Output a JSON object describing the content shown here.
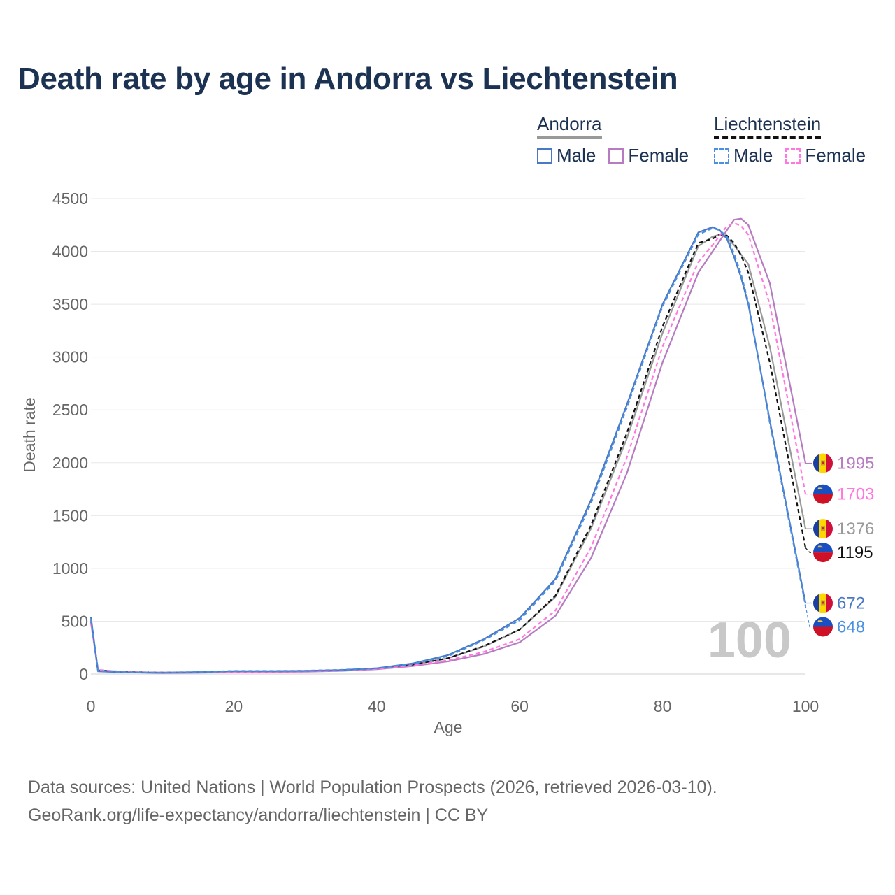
{
  "title": "Death rate by age in Andorra vs Liechtenstein",
  "legend": {
    "andorra": {
      "label": "Andorra",
      "male": "Male",
      "female": "Female"
    },
    "liechtenstein": {
      "label": "Liechtenstein",
      "male": "Male",
      "female": "Female"
    }
  },
  "colors": {
    "andorra_male": "#4a78c4",
    "andorra_female": "#b77bc2",
    "liechtenstein_male": "#4a90e2",
    "liechtenstein_female": "#ff77e0",
    "andorra_total": "#999999",
    "liechtenstein_total": "#111111"
  },
  "footer": {
    "line1": "Data sources: United Nations | World Population Prospects (2026, retrieved 2026-03-10).",
    "line2": "GeoRank.org/life-expectancy/andorra/liechtenstein | CC BY"
  },
  "chart_data": {
    "type": "line",
    "title": "Death rate by age in Andorra vs Liechtenstein",
    "xlabel": "Age",
    "ylabel": "Death rate",
    "xlim": [
      0,
      100
    ],
    "ylim": [
      0,
      4500
    ],
    "xticks": [
      0,
      20,
      40,
      60,
      80,
      100
    ],
    "yticks": [
      0,
      500,
      1000,
      1500,
      2000,
      2500,
      3000,
      3500,
      4000,
      4500
    ],
    "year_label": "100",
    "x": [
      0,
      1,
      5,
      10,
      15,
      20,
      25,
      30,
      35,
      40,
      45,
      50,
      55,
      60,
      65,
      70,
      75,
      80,
      85,
      87,
      88,
      89,
      90,
      91,
      92,
      95,
      100
    ],
    "series": [
      {
        "name": "Andorra Male",
        "key": "andorra_male",
        "dash": "solid",
        "values": [
          540,
          25,
          15,
          12,
          18,
          28,
          28,
          30,
          38,
          55,
          100,
          180,
          330,
          530,
          900,
          1650,
          2550,
          3500,
          4180,
          4230,
          4200,
          4120,
          3950,
          3750,
          3500,
          2400,
          672
        ],
        "end_label": "672"
      },
      {
        "name": "Andorra Female",
        "key": "andorra_female",
        "dash": "solid",
        "values": [
          500,
          30,
          15,
          10,
          12,
          18,
          20,
          22,
          30,
          45,
          75,
          120,
          190,
          300,
          550,
          1100,
          1900,
          2950,
          3800,
          4000,
          4100,
          4200,
          4300,
          4310,
          4250,
          3700,
          1995
        ],
        "end_label": "1995"
      },
      {
        "name": "Liechtenstein Male",
        "key": "liechtenstein_male",
        "dash": "dashed",
        "values": [
          520,
          30,
          18,
          14,
          20,
          30,
          30,
          32,
          40,
          55,
          95,
          170,
          320,
          510,
          880,
          1620,
          2520,
          3480,
          4160,
          4220,
          4200,
          4140,
          3980,
          3780,
          3520,
          2380,
          648
        ],
        "end_label": "648"
      },
      {
        "name": "Liechtenstein Female",
        "key": "liechtenstein_female",
        "dash": "dashed",
        "values": [
          480,
          40,
          20,
          14,
          15,
          20,
          22,
          25,
          32,
          48,
          80,
          130,
          210,
          330,
          600,
          1200,
          2050,
          3100,
          3900,
          4060,
          4150,
          4240,
          4270,
          4240,
          4160,
          3500,
          1703
        ],
        "end_label": "1703"
      },
      {
        "name": "Andorra Total",
        "key": "andorra_total",
        "dash": "solid",
        "values": [
          520,
          28,
          15,
          11,
          15,
          23,
          24,
          26,
          34,
          50,
          88,
          150,
          260,
          420,
          730,
          1380,
          2230,
          3230,
          4050,
          4140,
          4160,
          4130,
          4060,
          3970,
          3880,
          3100,
          1376
        ],
        "end_label": "1376"
      },
      {
        "name": "Liechtenstein Total",
        "key": "liechtenstein_total",
        "dash": "dashed",
        "values": [
          500,
          35,
          19,
          14,
          17,
          25,
          26,
          28,
          36,
          51,
          88,
          150,
          265,
          420,
          740,
          1410,
          2280,
          3290,
          4080,
          4120,
          4160,
          4150,
          4080,
          3960,
          3800,
          2950,
          1195
        ],
        "end_label": "1195"
      }
    ]
  }
}
